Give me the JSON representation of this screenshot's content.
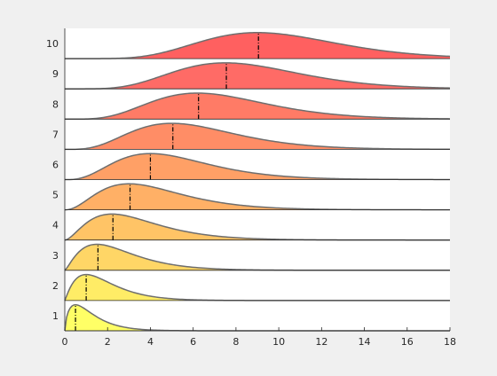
{
  "chart_data": {
    "type": "area",
    "title": "",
    "xlabel": "",
    "ylabel": "",
    "xlim": [
      0,
      18
    ],
    "xticks": [
      0,
      2,
      4,
      6,
      8,
      10,
      12,
      14,
      16,
      18
    ],
    "grid": false,
    "legend": "none",
    "series": [
      {
        "label": "1",
        "color": "#ffff66",
        "peak": 0.5,
        "width": 0.6,
        "marker": 0.5
      },
      {
        "label": "2",
        "color": "#ffec66",
        "peak": 1.0,
        "width": 0.95,
        "marker": 1.0
      },
      {
        "label": "3",
        "color": "#ffd666",
        "peak": 1.5,
        "width": 1.3,
        "marker": 1.55
      },
      {
        "label": "4",
        "color": "#ffc466",
        "peak": 2.2,
        "width": 1.65,
        "marker": 2.25
      },
      {
        "label": "5",
        "color": "#ffb066",
        "peak": 3.0,
        "width": 1.95,
        "marker": 3.05
      },
      {
        "label": "6",
        "color": "#ffa066",
        "peak": 4.0,
        "width": 2.2,
        "marker": 4.0
      },
      {
        "label": "7",
        "color": "#ff8d66",
        "peak": 5.0,
        "width": 2.45,
        "marker": 5.05
      },
      {
        "label": "8",
        "color": "#ff7b66",
        "peak": 6.2,
        "width": 2.7,
        "marker": 6.25
      },
      {
        "label": "9",
        "color": "#ff6b66",
        "peak": 7.5,
        "width": 2.95,
        "marker": 7.55
      },
      {
        "label": "10",
        "color": "#ff6060",
        "peak": 9.0,
        "width": 3.2,
        "marker": 9.05
      }
    ]
  }
}
